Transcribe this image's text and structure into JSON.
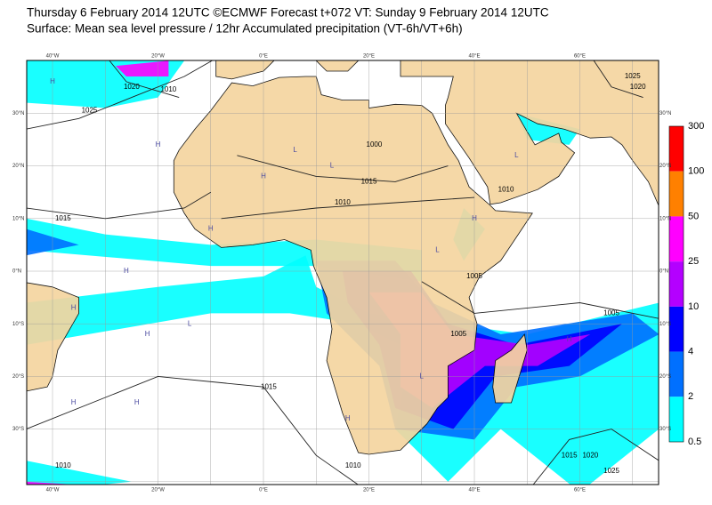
{
  "header": {
    "line1": "Thursday 6 February 2014 12UTC ©ECMWF Forecast t+072 VT: Sunday 9 February 2014 12UTC",
    "line2": "Surface: Mean sea level pressure / 12hr Accumulated precipitation (VT-6h/VT+6h)"
  },
  "map": {
    "lon_labels": [
      "40°W",
      "20°W",
      "0°E",
      "20°E",
      "40°E",
      "60°E"
    ],
    "lat_labels": [
      "30°N",
      "20°N",
      "10°N",
      "0°N",
      "10°S",
      "20°S",
      "30°S"
    ],
    "isobar_labels": [
      "1020",
      "1010",
      "1025",
      "1015",
      "1015",
      "1010",
      "1000",
      "1010",
      "1005",
      "1005",
      "1005",
      "1015",
      "1010",
      "1010",
      "1015",
      "1020",
      "1025",
      "1025",
      "1020"
    ],
    "centres": [
      "H",
      "H",
      "L",
      "L",
      "H",
      "H",
      "L",
      "H",
      "H",
      "L",
      "H",
      "H",
      "L",
      "H",
      "H",
      "H",
      "L",
      "H"
    ]
  },
  "legend": {
    "levels": [
      300,
      100,
      50,
      25,
      10,
      4,
      2,
      0.5
    ],
    "colors": [
      "#ff0000",
      "#ff8000",
      "#ff00ff",
      "#b400ff",
      "#0000ff",
      "#0070ff",
      "#00ffff"
    ]
  }
}
